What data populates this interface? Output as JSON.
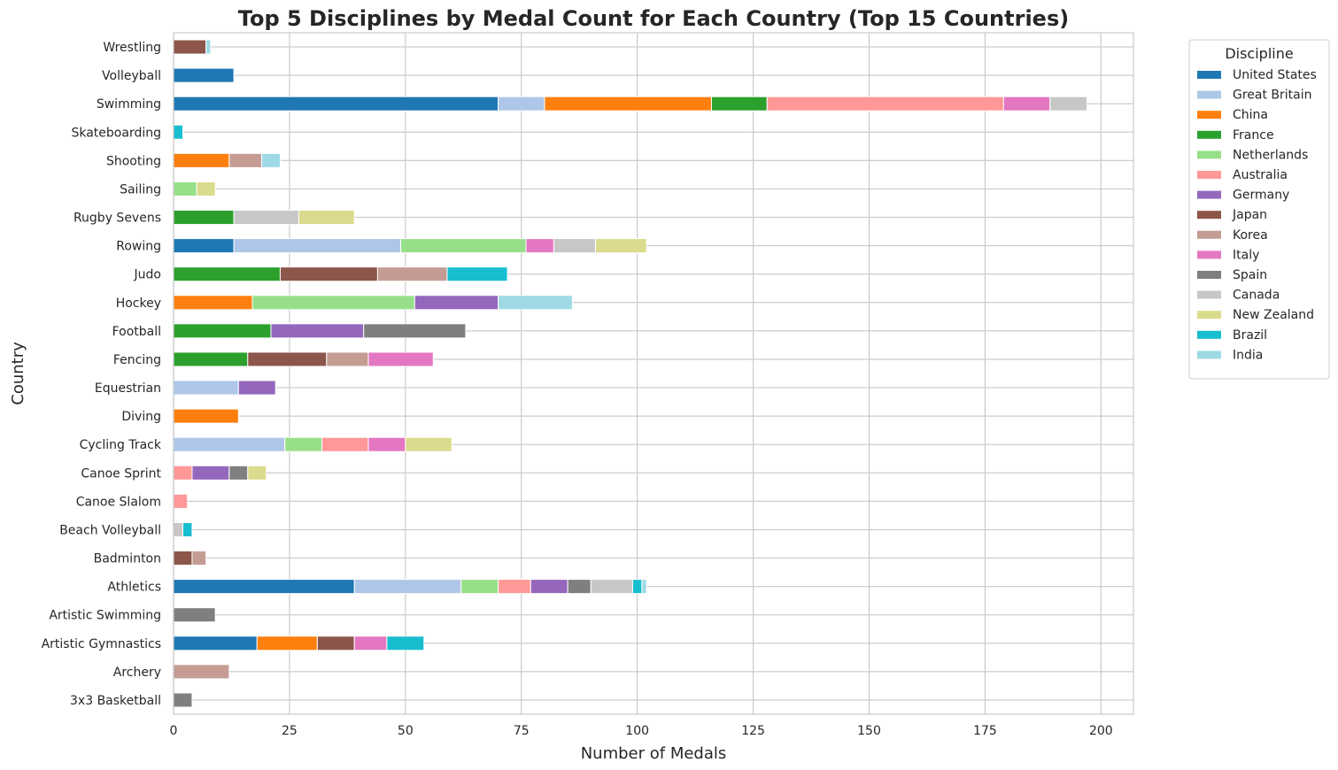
{
  "chart_data": {
    "type": "bar",
    "orientation": "horizontal",
    "stacked": true,
    "title": "Top 5 Disciplines by Medal Count for Each Country (Top 15 Countries)",
    "xlabel": "Number of Medals",
    "ylabel": "Country",
    "xlim": [
      0,
      207
    ],
    "xticks": [
      0,
      25,
      50,
      75,
      100,
      125,
      150,
      175,
      200
    ],
    "grid": true,
    "legend_title": "Discipline",
    "legend_position": "outside-top-right",
    "categories": [
      "3x3 Basketball",
      "Archery",
      "Artistic Gymnastics",
      "Artistic Swimming",
      "Athletics",
      "Badminton",
      "Beach Volleyball",
      "Canoe Slalom",
      "Canoe Sprint",
      "Cycling Track",
      "Diving",
      "Equestrian",
      "Fencing",
      "Football",
      "Hockey",
      "Judo",
      "Rowing",
      "Rugby Sevens",
      "Sailing",
      "Shooting",
      "Skateboarding",
      "Swimming",
      "Volleyball",
      "Wrestling"
    ],
    "series": [
      {
        "name": "United States",
        "color": "#1f77b4",
        "values": [
          0,
          0,
          18,
          0,
          39,
          0,
          0,
          0,
          0,
          0,
          0,
          0,
          0,
          0,
          0,
          0,
          13,
          0,
          0,
          0,
          0,
          70,
          13,
          0
        ]
      },
      {
        "name": "Great Britain",
        "color": "#aec7e8",
        "values": [
          0,
          0,
          0,
          0,
          23,
          0,
          0,
          0,
          0,
          24,
          0,
          14,
          0,
          0,
          0,
          0,
          36,
          0,
          0,
          0,
          0,
          10,
          0,
          0
        ]
      },
      {
        "name": "China",
        "color": "#ff7f0e",
        "values": [
          0,
          0,
          13,
          0,
          0,
          0,
          0,
          0,
          0,
          0,
          14,
          0,
          0,
          0,
          17,
          0,
          0,
          0,
          0,
          12,
          0,
          36,
          0,
          0
        ]
      },
      {
        "name": "France",
        "color": "#2ca02c",
        "values": [
          0,
          0,
          0,
          0,
          0,
          0,
          0,
          0,
          0,
          0,
          0,
          0,
          16,
          21,
          0,
          23,
          0,
          13,
          0,
          0,
          0,
          12,
          0,
          0
        ]
      },
      {
        "name": "Netherlands",
        "color": "#98df8a",
        "values": [
          0,
          0,
          0,
          0,
          8,
          0,
          0,
          0,
          0,
          8,
          0,
          0,
          0,
          0,
          35,
          0,
          27,
          0,
          5,
          0,
          0,
          0,
          0,
          0
        ]
      },
      {
        "name": "Australia",
        "color": "#ff9896",
        "values": [
          0,
          0,
          0,
          0,
          7,
          0,
          0,
          3,
          4,
          10,
          0,
          0,
          0,
          0,
          0,
          0,
          0,
          0,
          0,
          0,
          0,
          51,
          0,
          0
        ]
      },
      {
        "name": "Germany",
        "color": "#9467bd",
        "values": [
          0,
          0,
          0,
          0,
          8,
          0,
          0,
          0,
          8,
          0,
          0,
          8,
          0,
          20,
          18,
          0,
          0,
          0,
          0,
          0,
          0,
          0,
          0,
          0
        ]
      },
      {
        "name": "Japan",
        "color": "#8c564b",
        "values": [
          0,
          0,
          8,
          0,
          0,
          4,
          0,
          0,
          0,
          0,
          0,
          0,
          17,
          0,
          0,
          21,
          0,
          0,
          0,
          0,
          0,
          0,
          0,
          7
        ]
      },
      {
        "name": "Korea",
        "color": "#c49c94",
        "values": [
          0,
          12,
          0,
          0,
          0,
          3,
          0,
          0,
          0,
          0,
          0,
          0,
          9,
          0,
          0,
          15,
          0,
          0,
          0,
          7,
          0,
          0,
          0,
          0
        ]
      },
      {
        "name": "Italy",
        "color": "#e377c2",
        "values": [
          0,
          0,
          7,
          0,
          0,
          0,
          0,
          0,
          0,
          8,
          0,
          0,
          14,
          0,
          0,
          0,
          6,
          0,
          0,
          0,
          0,
          10,
          0,
          0
        ]
      },
      {
        "name": "Spain",
        "color": "#7f7f7f",
        "values": [
          4,
          0,
          0,
          9,
          5,
          0,
          0,
          0,
          4,
          0,
          0,
          0,
          0,
          22,
          0,
          0,
          0,
          0,
          0,
          0,
          0,
          0,
          0,
          0
        ]
      },
      {
        "name": "Canada",
        "color": "#c7c7c7",
        "values": [
          0,
          0,
          0,
          0,
          9,
          0,
          2,
          0,
          0,
          0,
          0,
          0,
          0,
          0,
          0,
          0,
          9,
          14,
          0,
          0,
          0,
          8,
          0,
          0
        ]
      },
      {
        "name": "New Zealand",
        "color": "#dbdb8d",
        "values": [
          0,
          0,
          0,
          0,
          0,
          0,
          0,
          0,
          4,
          10,
          0,
          0,
          0,
          0,
          0,
          0,
          11,
          12,
          4,
          0,
          0,
          0,
          0,
          0
        ]
      },
      {
        "name": "Brazil",
        "color": "#17becf",
        "values": [
          0,
          0,
          8,
          0,
          2,
          0,
          2,
          0,
          0,
          0,
          0,
          0,
          0,
          0,
          0,
          13,
          0,
          0,
          0,
          0,
          2,
          0,
          0,
          0
        ]
      },
      {
        "name": "India",
        "color": "#9edae5",
        "values": [
          0,
          0,
          0,
          0,
          1,
          0,
          0,
          0,
          0,
          0,
          0,
          0,
          0,
          0,
          16,
          0,
          0,
          0,
          0,
          4,
          0,
          0,
          0,
          1
        ]
      }
    ]
  }
}
